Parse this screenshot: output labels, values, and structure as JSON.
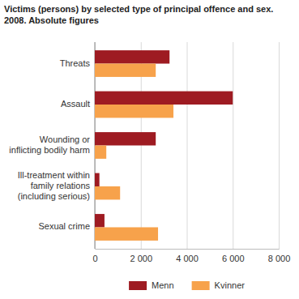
{
  "chart_data": {
    "type": "bar",
    "orientation": "horizontal",
    "title": "Victims (persons) by selected type of principal offence and sex. 2008. Absolute figures",
    "categories": [
      "Threats",
      "Assault",
      "Wounding or inflicting bodily harm",
      "Ill-treatment within family relations (including serious)",
      "Sexual crime"
    ],
    "series": [
      {
        "name": "Menn",
        "color": "#9e1b22",
        "values": [
          3250,
          6000,
          2650,
          200,
          420
        ]
      },
      {
        "name": "Kvinner",
        "color": "#f7a24b",
        "values": [
          2650,
          3420,
          500,
          1100,
          2750
        ]
      }
    ],
    "xlim": [
      0,
      8000
    ],
    "xticks": [
      0,
      {
        "value": 2000,
        "label": "2 000"
      },
      {
        "value": 4000,
        "label": "4 000"
      },
      {
        "value": 6000,
        "label": "6 000"
      },
      {
        "value": 8000,
        "label": "8 000"
      }
    ],
    "grid": true,
    "legend": "bottom"
  }
}
